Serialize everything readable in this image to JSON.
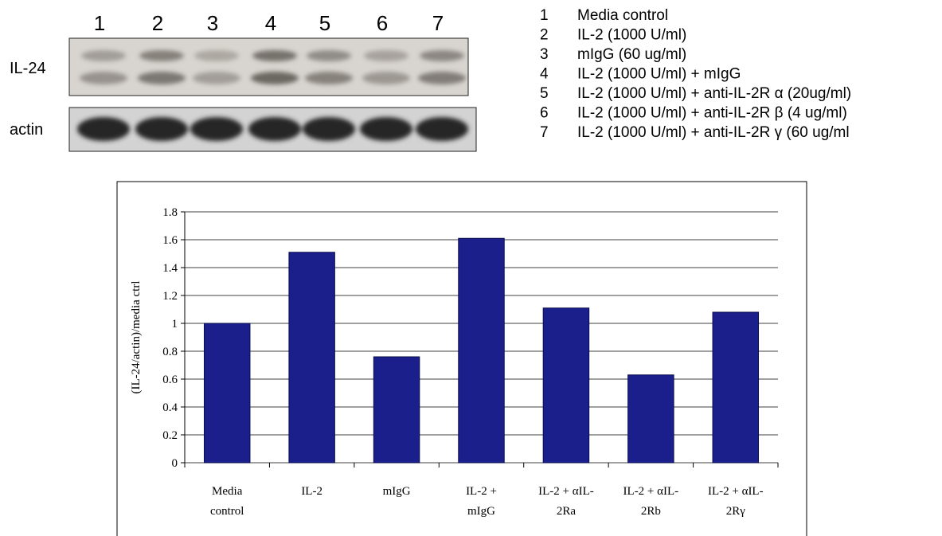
{
  "blot": {
    "lanes": [
      "1",
      "2",
      "3",
      "4",
      "5",
      "6",
      "7"
    ],
    "rows": [
      "IL-24",
      "actin"
    ]
  },
  "legend": [
    {
      "number": "1",
      "text": "Media control"
    },
    {
      "number": "2",
      "text": "IL-2 (1000 U/ml)"
    },
    {
      "number": "3",
      "text": "mIgG (60 ug/ml)"
    },
    {
      "number": "4",
      "text": "IL-2 (1000 U/ml) + mIgG"
    },
    {
      "number": "5",
      "text": "IL-2 (1000 U/ml) + anti-IL-2R α (20ug/ml)"
    },
    {
      "number": "6",
      "text": "IL-2 (1000 U/ml) + anti-IL-2R β (4 ug/ml)"
    },
    {
      "number": "7",
      "text": "IL-2 (1000 U/ml) + anti-IL-2R γ (60 ug/ml"
    }
  ],
  "chart_data": {
    "type": "bar",
    "y_label": "(IL-24/actin)/media ctrl",
    "categories": [
      [
        "Media",
        "control"
      ],
      [
        "IL-2"
      ],
      [
        "mIgG"
      ],
      [
        "IL-2 +",
        "mIgG"
      ],
      [
        "IL-2 + αIL-",
        "2Ra"
      ],
      [
        "IL-2 + αIL-",
        "2Rb"
      ],
      [
        "IL-2 + αIL-",
        "2Rγ"
      ]
    ],
    "values": [
      1.0,
      1.51,
      0.76,
      1.61,
      1.11,
      0.63,
      1.08
    ],
    "color": "#1a1f8c",
    "ylim": [
      0,
      1.8
    ],
    "yticks": [
      0,
      0.2,
      0.4,
      0.6,
      0.8,
      1,
      1.2,
      1.4,
      1.6,
      1.8
    ],
    "grid": true
  }
}
